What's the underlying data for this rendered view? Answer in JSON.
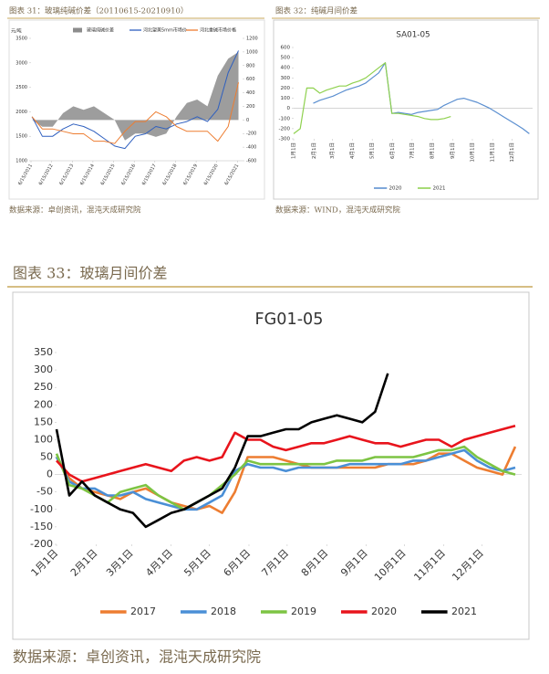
{
  "chart_data": [
    {
      "type": "combo",
      "caption": "图表 31：玻璃纯碱价差（20110615-20210910）",
      "source": "数据来源：卓创资讯，混沌天成研究院",
      "y_label": "元/吨",
      "x": [
        2011.5,
        2012,
        2012.5,
        2013,
        2013.5,
        2014,
        2014.5,
        2015,
        2015.5,
        2016,
        2016.5,
        2017,
        2017.5,
        2018,
        2018.5,
        2019,
        2019.5,
        2020,
        2020.5,
        2021,
        2021.5
      ],
      "xlim": [
        2011.45,
        2021.7
      ],
      "xticks": [
        {
          "value": 2011.45,
          "label": "6/15/2011"
        },
        {
          "value": 2012.45,
          "label": "6/15/2012"
        },
        {
          "value": 2013.45,
          "label": "6/15/2013"
        },
        {
          "value": 2014.45,
          "label": "6/15/2014"
        },
        {
          "value": 2015.45,
          "label": "6/15/2015"
        },
        {
          "value": 2016.45,
          "label": "6/15/2016"
        },
        {
          "value": 2017.45,
          "label": "6/15/2017"
        },
        {
          "value": 2018.45,
          "label": "6/15/2018"
        },
        {
          "value": 2019.45,
          "label": "6/15/2019"
        },
        {
          "value": 2020.45,
          "label": "6/15/2020"
        },
        {
          "value": 2021.45,
          "label": "6/15/2021"
        }
      ],
      "ylim": [
        1000,
        3500
      ],
      "yticks": [
        1000,
        1500,
        2000,
        2500,
        3000,
        3500
      ],
      "y2lim": [
        -600,
        1200
      ],
      "y2ticks": [
        -600,
        -400,
        -200,
        0,
        200,
        400,
        600,
        800,
        1000,
        1200
      ],
      "series": [
        {
          "name": "玻璃纯碱价差",
          "type": "area",
          "axis": "y2",
          "color": "#8c8c8c",
          "values": [
            0,
            -100,
            -100,
            100,
            200,
            150,
            200,
            100,
            0,
            -300,
            -200,
            -200,
            -250,
            -200,
            50,
            250,
            300,
            200,
            650,
            900,
            1000
          ]
        },
        {
          "name": "河北望美5mm市场价",
          "type": "line",
          "color": "#2e5fbf",
          "values": [
            1900,
            1500,
            1500,
            1650,
            1750,
            1700,
            1600,
            1450,
            1300,
            1250,
            1500,
            1550,
            1700,
            1650,
            1750,
            1800,
            1900,
            1800,
            2050,
            2800,
            3250
          ]
        },
        {
          "name": "河北重碱市场价格",
          "type": "line",
          "color": "#ed7d31",
          "values": [
            1900,
            1650,
            1650,
            1600,
            1550,
            1550,
            1400,
            1400,
            1350,
            1600,
            1800,
            1800,
            2000,
            1900,
            1700,
            1600,
            1600,
            1600,
            1400,
            1700,
            2600
          ]
        }
      ]
    },
    {
      "type": "line",
      "caption": "图表 32：纯碱月间价差",
      "source": "数据来源：WIND，混沌天成研究院",
      "title": "SA01-05",
      "x": [
        1,
        11,
        21,
        31,
        41,
        51,
        61,
        71,
        81,
        91,
        101,
        111,
        121,
        131,
        141,
        151,
        161,
        171,
        181,
        191,
        201,
        211,
        221,
        231,
        241,
        251,
        261,
        271,
        281,
        291,
        301,
        311,
        321,
        331,
        341,
        351,
        361
      ],
      "xlim": [
        1,
        366
      ],
      "xticks": [
        {
          "value": 1,
          "label": "1月1日"
        },
        {
          "value": 32,
          "label": "2月1日"
        },
        {
          "value": 60,
          "label": "3月1日"
        },
        {
          "value": 91,
          "label": "4月1日"
        },
        {
          "value": 121,
          "label": "5月1日"
        },
        {
          "value": 152,
          "label": "6月1日"
        },
        {
          "value": 182,
          "label": "7月1日"
        },
        {
          "value": 213,
          "label": "8月1日"
        },
        {
          "value": 244,
          "label": "9月1日"
        },
        {
          "value": 274,
          "label": "10月1日"
        },
        {
          "value": 305,
          "label": "11月1日"
        },
        {
          "value": 335,
          "label": "12月1日"
        }
      ],
      "ylim": [
        -300,
        600
      ],
      "yticks": [
        -300,
        -200,
        -100,
        0,
        100,
        200,
        300,
        400,
        500,
        600
      ],
      "series": [
        {
          "name": "2020",
          "color": "#5b8fd0",
          "values": [
            null,
            null,
            null,
            50,
            80,
            100,
            120,
            150,
            180,
            200,
            220,
            250,
            300,
            350,
            450,
            -50,
            -40,
            -50,
            -60,
            -40,
            -30,
            -20,
            -10,
            30,
            60,
            90,
            100,
            80,
            60,
            30,
            0,
            -40,
            -80,
            -120,
            -160,
            -200,
            -250
          ]
        },
        {
          "name": "2021",
          "color": "#8fd14f",
          "values": [
            -250,
            -200,
            200,
            200,
            150,
            180,
            200,
            220,
            220,
            250,
            270,
            300,
            350,
            400,
            450,
            -50,
            -50,
            -60,
            -70,
            -80,
            -100,
            -110,
            -110,
            -100,
            -80,
            null,
            null,
            null,
            null,
            null,
            null,
            null,
            null,
            null,
            null,
            null,
            null
          ]
        }
      ]
    },
    {
      "type": "line",
      "caption": "图表 33：玻璃月间价差",
      "source": "数据来源：卓创资讯，混沌天成研究院",
      "title": "FG01-05",
      "x": [
        1,
        11,
        21,
        31,
        41,
        51,
        61,
        71,
        81,
        91,
        101,
        111,
        121,
        131,
        141,
        151,
        161,
        171,
        181,
        191,
        201,
        211,
        221,
        231,
        241,
        251,
        261,
        271,
        281,
        291,
        301,
        311,
        321,
        331,
        341,
        351,
        361
      ],
      "xlim": [
        1,
        366
      ],
      "xticks": [
        {
          "value": 1,
          "label": "1月1日"
        },
        {
          "value": 32,
          "label": "2月1日"
        },
        {
          "value": 60,
          "label": "3月1日"
        },
        {
          "value": 91,
          "label": "4月1日"
        },
        {
          "value": 121,
          "label": "5月1日"
        },
        {
          "value": 152,
          "label": "6月1日"
        },
        {
          "value": 182,
          "label": "7月1日"
        },
        {
          "value": 213,
          "label": "8月1日"
        },
        {
          "value": 244,
          "label": "9月1日"
        },
        {
          "value": 274,
          "label": "10月1日"
        },
        {
          "value": 305,
          "label": "11月1日"
        },
        {
          "value": 335,
          "label": "12月1日"
        }
      ],
      "ylim": [
        -200,
        350
      ],
      "yticks": [
        -200,
        -150,
        -100,
        -50,
        0,
        50,
        100,
        150,
        200,
        250,
        300,
        350
      ],
      "series": [
        {
          "name": "2017",
          "color": "#ed7d31",
          "values": [
            50,
            -10,
            -40,
            -50,
            -60,
            -70,
            -50,
            -40,
            -60,
            -80,
            -90,
            -100,
            -90,
            -110,
            -50,
            50,
            50,
            50,
            40,
            30,
            20,
            20,
            20,
            20,
            20,
            20,
            30,
            30,
            30,
            40,
            60,
            60,
            40,
            20,
            10,
            0,
            80
          ]
        },
        {
          "name": "2018",
          "color": "#4a8fd6",
          "values": [
            50,
            -20,
            -40,
            -40,
            -60,
            -60,
            -50,
            -70,
            -80,
            -90,
            -100,
            -100,
            -80,
            -60,
            10,
            30,
            20,
            20,
            10,
            20,
            20,
            20,
            20,
            30,
            30,
            30,
            30,
            30,
            40,
            40,
            50,
            60,
            70,
            40,
            20,
            10,
            20
          ]
        },
        {
          "name": "2019",
          "color": "#7dc443",
          "values": [
            60,
            -30,
            -40,
            -60,
            -80,
            -50,
            -40,
            -30,
            -60,
            -80,
            -100,
            -80,
            -60,
            -30,
            0,
            40,
            30,
            30,
            30,
            30,
            30,
            30,
            40,
            40,
            40,
            50,
            50,
            50,
            50,
            60,
            70,
            70,
            80,
            50,
            30,
            10,
            0
          ]
        },
        {
          "name": "2020",
          "color": "#e8141c",
          "values": [
            40,
            0,
            -20,
            -10,
            0,
            10,
            20,
            30,
            20,
            10,
            40,
            50,
            40,
            50,
            120,
            100,
            100,
            80,
            70,
            80,
            90,
            90,
            100,
            110,
            100,
            90,
            90,
            80,
            90,
            100,
            100,
            80,
            100,
            110,
            120,
            130,
            140
          ]
        },
        {
          "name": "2021",
          "color": "#000000",
          "values": [
            130,
            -60,
            -20,
            -60,
            -80,
            -100,
            -110,
            -150,
            -130,
            -110,
            -100,
            -80,
            -60,
            -40,
            20,
            110,
            110,
            120,
            130,
            130,
            150,
            160,
            170,
            160,
            150,
            180,
            290,
            null,
            null,
            null,
            null,
            null,
            null,
            null,
            null,
            null,
            null
          ]
        }
      ]
    }
  ]
}
